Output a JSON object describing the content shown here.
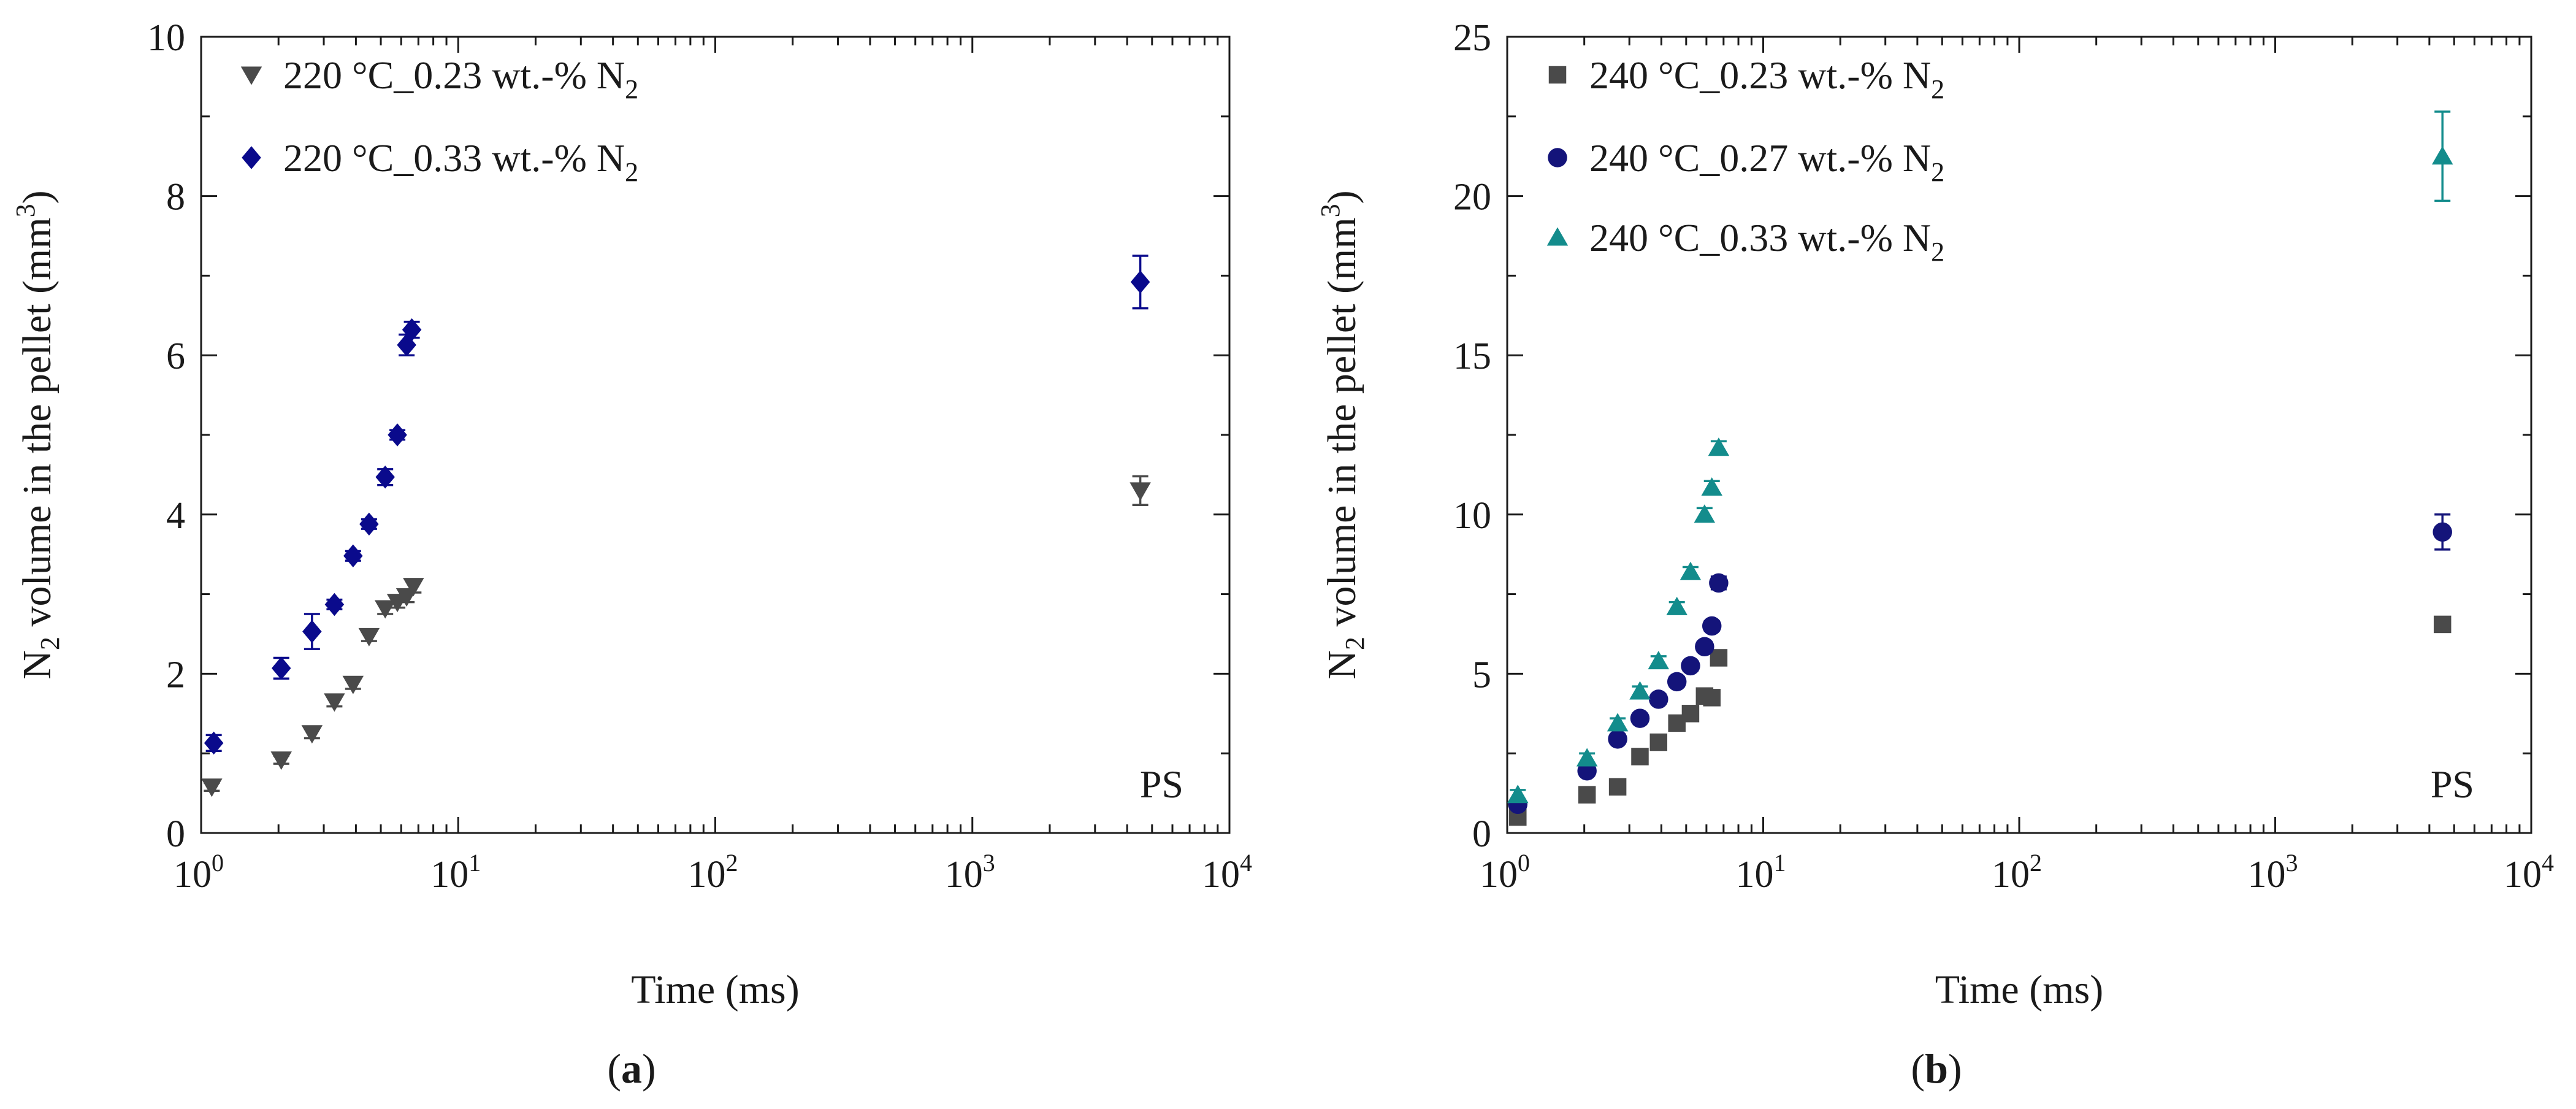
{
  "figure": {
    "panel_labels": [
      {
        "open": "(",
        "letter": "a",
        "close": ")"
      },
      {
        "open": "(",
        "letter": "b",
        "close": ")"
      }
    ]
  },
  "chart_data": [
    {
      "type": "scatter",
      "panel": "a",
      "xlabel": "Time (ms)",
      "ylabel": {
        "pre": "N",
        "sub": "2",
        "mid": " volume in the pellet (mm",
        "sup": "3",
        "post": ")"
      },
      "xscale": "log",
      "xlim": [
        1,
        10000
      ],
      "ylim": [
        0,
        10
      ],
      "x_ticks": [
        {
          "base": "10",
          "exp": "0"
        },
        {
          "base": "10",
          "exp": "1"
        },
        {
          "base": "10",
          "exp": "2"
        },
        {
          "base": "10",
          "exp": "3"
        },
        {
          "base": "10",
          "exp": "4"
        }
      ],
      "x_tick_values": [
        1,
        10,
        100,
        1000,
        10000
      ],
      "y_ticks": [
        "0",
        "2",
        "4",
        "6",
        "8",
        "10"
      ],
      "y_tick_values": [
        0,
        2,
        4,
        6,
        8,
        10
      ],
      "grid": false,
      "legend_position": "top-left",
      "annotation": "PS",
      "series": [
        {
          "name": {
            "main": "220 °C_0.23 wt.-% N",
            "sub": "2"
          },
          "marker": "triangle-down",
          "color": "#4a4a4a",
          "x": [
            1.1,
            2.05,
            2.7,
            3.3,
            3.9,
            4.5,
            5.2,
            5.8,
            6.3,
            6.7,
            4500
          ],
          "y": [
            0.58,
            0.92,
            1.25,
            1.65,
            1.87,
            2.47,
            2.82,
            2.9,
            2.97,
            3.1,
            4.3
          ],
          "err": [
            0.05,
            0.05,
            0.06,
            0.06,
            0.06,
            0.06,
            0.07,
            0.07,
            0.07,
            0.08,
            0.18
          ]
        },
        {
          "name": {
            "main": "220 °C_0.33 wt.-% N",
            "sub": "2"
          },
          "marker": "diamond",
          "color": "#0a0a8c",
          "x": [
            1.12,
            2.05,
            2.7,
            3.3,
            3.9,
            4.5,
            5.2,
            5.8,
            6.3,
            6.6,
            4500
          ],
          "y": [
            1.13,
            2.07,
            2.53,
            2.87,
            3.48,
            3.88,
            4.47,
            5.0,
            6.13,
            6.32,
            6.92
          ],
          "err": [
            0.1,
            0.13,
            0.22,
            0.06,
            0.06,
            0.06,
            0.1,
            0.06,
            0.13,
            0.1,
            0.33
          ]
        }
      ]
    },
    {
      "type": "scatter",
      "panel": "b",
      "xlabel": "Time (ms)",
      "ylabel": {
        "pre": "N",
        "sub": "2",
        "mid": " volume in the pellet (mm",
        "sup": "3",
        "post": ")"
      },
      "xscale": "log",
      "xlim": [
        1,
        10000
      ],
      "ylim": [
        0,
        25
      ],
      "x_ticks": [
        {
          "base": "10",
          "exp": "0"
        },
        {
          "base": "10",
          "exp": "1"
        },
        {
          "base": "10",
          "exp": "2"
        },
        {
          "base": "10",
          "exp": "3"
        },
        {
          "base": "10",
          "exp": "4"
        }
      ],
      "x_tick_values": [
        1,
        10,
        100,
        1000,
        10000
      ],
      "y_ticks": [
        "0",
        "5",
        "10",
        "15",
        "20",
        "25"
      ],
      "y_tick_values": [
        0,
        5,
        10,
        15,
        20,
        25
      ],
      "grid": false,
      "legend_position": "top-left",
      "annotation": "PS",
      "series": [
        {
          "name": {
            "main": "240 °C_0.23 wt.-% N",
            "sub": "2"
          },
          "marker": "square",
          "color": "#4a4a4a",
          "x": [
            1.1,
            2.05,
            2.7,
            3.3,
            3.9,
            4.6,
            5.2,
            5.9,
            6.3,
            6.7,
            4500
          ],
          "y": [
            0.5,
            1.2,
            1.45,
            2.4,
            2.85,
            3.45,
            3.75,
            4.3,
            4.25,
            5.5,
            6.55
          ],
          "err": [
            0.1,
            0.1,
            0.1,
            0.1,
            0.1,
            0.1,
            0.1,
            0.1,
            0.15,
            0.15,
            0.2
          ]
        },
        {
          "name": {
            "main": "240 °C_0.27 wt.-% N",
            "sub": "2"
          },
          "marker": "circle",
          "color": "#14147a",
          "x": [
            1.1,
            2.05,
            2.7,
            3.3,
            3.9,
            4.6,
            5.2,
            5.9,
            6.3,
            6.7,
            4500
          ],
          "y": [
            0.9,
            1.95,
            2.95,
            3.6,
            4.2,
            4.75,
            5.25,
            5.85,
            6.5,
            7.85,
            9.45
          ],
          "err": [
            0.15,
            0.15,
            0.15,
            0.15,
            0.15,
            0.15,
            0.15,
            0.15,
            0.15,
            0.2,
            0.55
          ]
        },
        {
          "name": {
            "main": "240 °C_0.33 wt.-% N",
            "sub": "2"
          },
          "marker": "triangle-up",
          "color": "#138c8c",
          "x": [
            1.1,
            2.05,
            2.7,
            3.3,
            3.9,
            4.6,
            5.2,
            5.9,
            6.3,
            6.7,
            4500
          ],
          "y": [
            1.2,
            2.35,
            3.45,
            4.45,
            5.4,
            7.1,
            8.2,
            10.0,
            10.85,
            12.1,
            21.25
          ],
          "err": [
            0.15,
            0.15,
            0.15,
            0.15,
            0.15,
            0.15,
            0.15,
            0.2,
            0.2,
            0.2,
            1.4
          ]
        }
      ]
    }
  ]
}
